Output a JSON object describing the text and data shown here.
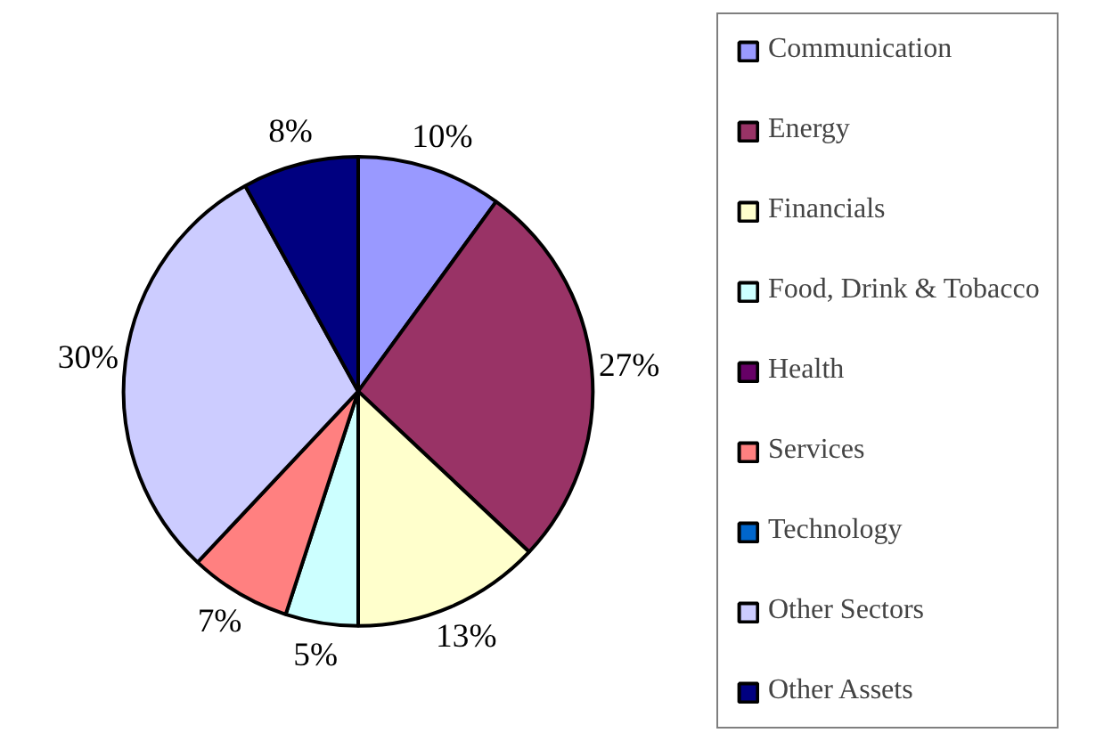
{
  "chart_data": {
    "type": "pie",
    "categories": [
      "Communication",
      "Energy",
      "Financials",
      "Food, Drink & Tobacco",
      "Health",
      "Services",
      "Technology",
      "Other Sectors",
      "Other Assets"
    ],
    "values": [
      10,
      27,
      13,
      5,
      0,
      7,
      0,
      30,
      8
    ],
    "colors": [
      "#9999ff",
      "#993366",
      "#ffffcc",
      "#ccffff",
      "#660066",
      "#ff8080",
      "#0066cc",
      "#ccccff",
      "#000080"
    ],
    "value_labels": [
      "10%",
      "27%",
      "13%",
      "5%",
      null,
      "7%",
      null,
      "30%",
      "8%"
    ],
    "legend": "right"
  }
}
